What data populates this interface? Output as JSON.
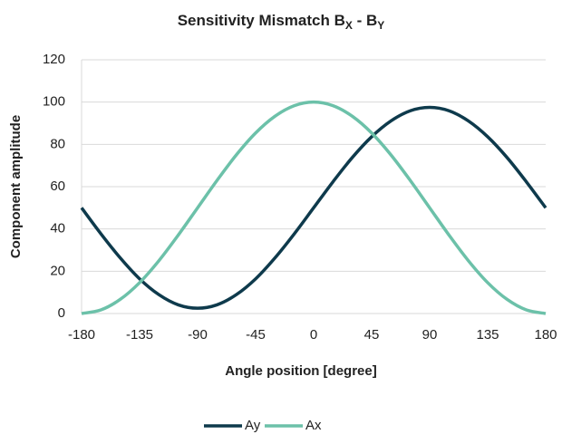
{
  "chart_data": {
    "type": "line",
    "title_parts": [
      "Sensitivity Mismatch B",
      "X",
      " - B",
      "Y"
    ],
    "x_label": "Angle position [degree]",
    "y_label": "Component amplitude",
    "x": [
      -180,
      -165,
      -150,
      -135,
      -120,
      -105,
      -90,
      -75,
      -60,
      -45,
      -30,
      -15,
      0,
      15,
      30,
      45,
      60,
      75,
      90,
      105,
      120,
      135,
      150,
      165,
      180
    ],
    "series": [
      {
        "name": "Ay",
        "color": "#0e3a4c",
        "values": [
          50,
          37.7,
          26.3,
          16.4,
          8.9,
          4.1,
          2.5,
          4.1,
          8.9,
          16.4,
          26.3,
          37.7,
          50,
          62.3,
          73.8,
          83.6,
          91.1,
          95.9,
          97.5,
          95.9,
          91.1,
          83.6,
          73.8,
          62.3,
          50
        ]
      },
      {
        "name": "Ax",
        "color": "#6cc1a9",
        "values": [
          0,
          1.7,
          6.7,
          14.6,
          25,
          37.1,
          50,
          62.9,
          75,
          85.4,
          93.3,
          98.3,
          100,
          98.3,
          93.3,
          85.4,
          75,
          62.9,
          50,
          37.1,
          25,
          14.6,
          6.7,
          1.7,
          0
        ]
      }
    ],
    "xlim": [
      -180,
      180
    ],
    "xticks": [
      -180,
      -135,
      -90,
      -45,
      0,
      45,
      90,
      135,
      180
    ],
    "ylim": [
      0,
      120
    ],
    "yticks": [
      0,
      20,
      40,
      60,
      80,
      100,
      120
    ],
    "grid": true,
    "legend": "bottom"
  }
}
